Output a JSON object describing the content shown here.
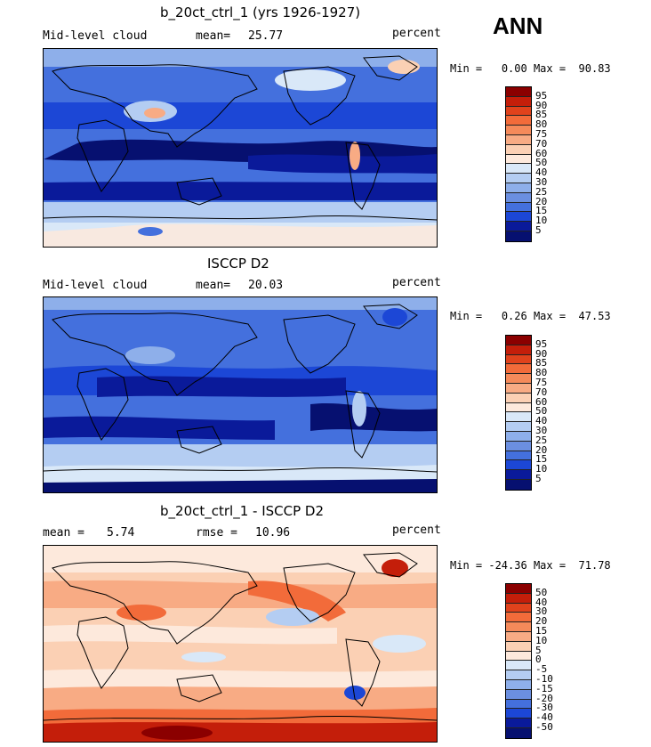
{
  "season": "ANN",
  "panels": [
    {
      "title": "b_20ct_ctrl_1 (yrs 1926-1927)",
      "left_label": "Mid-level cloud",
      "stat1_label": "mean=",
      "stat1_value": "25.77",
      "units": "percent",
      "min_label": "Min =",
      "min_value": "0.00",
      "max_label": "Max =",
      "max_value": "90.83",
      "palette": "model"
    },
    {
      "title": "ISCCP D2",
      "left_label": "Mid-level cloud",
      "stat1_label": "mean=",
      "stat1_value": "20.03",
      "units": "percent",
      "min_label": "Min =",
      "min_value": "0.26",
      "max_label": "Max =",
      "max_value": "47.53",
      "palette": "obs"
    },
    {
      "title": "b_20ct_ctrl_1 - ISCCP D2",
      "left_label": "mean =",
      "left_value": "5.74",
      "stat1_label": "rmse =",
      "stat1_value": "10.96",
      "units": "percent",
      "min_label": "Min =",
      "min_value": "-24.36",
      "max_label": "Max =",
      "max_value": "71.78",
      "palette": "diff"
    }
  ],
  "colorbars": {
    "abs_levels": [
      "95",
      "90",
      "85",
      "80",
      "75",
      "70",
      "60",
      "50",
      "40",
      "30",
      "25",
      "20",
      "15",
      "10",
      "5"
    ],
    "abs_colors": [
      "#8b0000",
      "#c41e0a",
      "#e0421c",
      "#f26b3a",
      "#f58a5a",
      "#f8ab84",
      "#fbd0b4",
      "#fde9dc",
      "#d9e8f8",
      "#b4cdf2",
      "#8eafea",
      "#6b8fe0",
      "#4470dd",
      "#1c47d6",
      "#0a1a9a",
      "#061070"
    ],
    "diff_levels": [
      "50",
      "40",
      "30",
      "20",
      "15",
      "10",
      "5",
      "0",
      "-5",
      "-10",
      "-15",
      "-20",
      "-30",
      "-40",
      "-50"
    ],
    "diff_colors": [
      "#8b0000",
      "#c41e0a",
      "#e0421c",
      "#f26b3a",
      "#f58a5a",
      "#f8ab84",
      "#fbd0b4",
      "#fde9dc",
      "#d9e8f8",
      "#b4cdf2",
      "#8eafea",
      "#6b8fe0",
      "#4470dd",
      "#1c47d6",
      "#0a1a9a",
      "#061070"
    ]
  }
}
